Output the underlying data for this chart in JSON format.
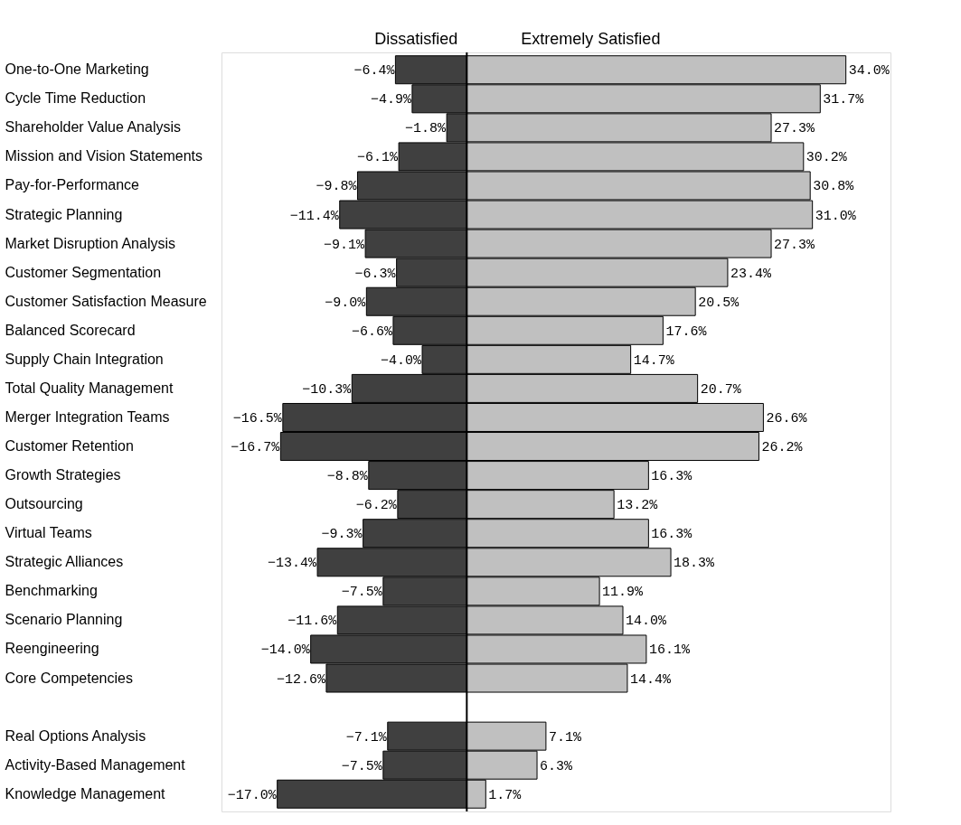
{
  "chart_data": {
    "type": "bar",
    "orientation": "horizontal",
    "categories": [
      "One-to-One Marketing",
      "Cycle Time Reduction",
      "Shareholder Value Analysis",
      "Mission and Vision Statements",
      "Pay-for-Performance",
      "Strategic Planning",
      "Market Disruption Analysis",
      "Customer Segmentation",
      "Customer Satisfaction Measure",
      "Balanced Scorecard",
      "Supply Chain Integration",
      "Total Quality Management",
      "Merger Integration Teams",
      "Customer Retention",
      "Growth Strategies",
      "Outsourcing",
      "Virtual Teams",
      "Strategic Alliances",
      "Benchmarking",
      "Scenario Planning",
      "Reengineering",
      "Core Competencies",
      null,
      "Real Options Analysis",
      "Activity-Based Management",
      "Knowledge Management"
    ],
    "series": [
      {
        "name": "Dissatisfied",
        "color": "#404040",
        "values": [
          -6.4,
          -4.9,
          -1.8,
          -6.1,
          -9.8,
          -11.4,
          -9.1,
          -6.3,
          -9.0,
          -6.6,
          -4.0,
          -10.3,
          -16.5,
          -16.7,
          -8.8,
          -6.2,
          -9.3,
          -13.4,
          -7.5,
          -11.6,
          -14.0,
          -12.6,
          null,
          -7.1,
          -7.5,
          -17.0
        ],
        "value_labels": [
          "−6.4%",
          "−4.9%",
          "−1.8%",
          "−6.1%",
          "−9.8%",
          "−11.4%",
          "−9.1%",
          "−6.3%",
          "−9.0%",
          "−6.6%",
          "−4.0%",
          "−10.3%",
          "−16.5%",
          "−16.7%",
          "−8.8%",
          "−6.2%",
          "−9.3%",
          "−13.4%",
          "−7.5%",
          "−11.6%",
          "−14.0%",
          "−12.6%",
          null,
          "−7.1%",
          "−7.5%",
          "−17.0%"
        ]
      },
      {
        "name": "Extremely Satisfied",
        "color": "#c0c0c0",
        "values": [
          34.0,
          31.7,
          27.3,
          30.2,
          30.8,
          31.0,
          27.3,
          23.4,
          20.5,
          17.6,
          14.7,
          20.7,
          26.6,
          26.2,
          16.3,
          13.2,
          16.3,
          18.3,
          11.9,
          14.0,
          16.1,
          14.4,
          null,
          7.1,
          6.3,
          1.7
        ],
        "value_labels": [
          "34.0%",
          "31.7%",
          "27.3%",
          "30.2%",
          "30.8%",
          "31.0%",
          "27.3%",
          "23.4%",
          "20.5%",
          "17.6%",
          "14.7%",
          "20.7%",
          "26.6%",
          "26.2%",
          "16.3%",
          "13.2%",
          "16.3%",
          "18.3%",
          "11.9%",
          "14.0%",
          "16.1%",
          "14.4%",
          null,
          "7.1%",
          "6.3%",
          "1.7%"
        ]
      }
    ],
    "xlim": [
      -22,
      38
    ],
    "ref_lines": [
      {
        "axis": "x",
        "value": 0,
        "color": "#000000"
      }
    ],
    "stacked": true,
    "legend": "top",
    "grid": false,
    "tick_labels": "y"
  }
}
